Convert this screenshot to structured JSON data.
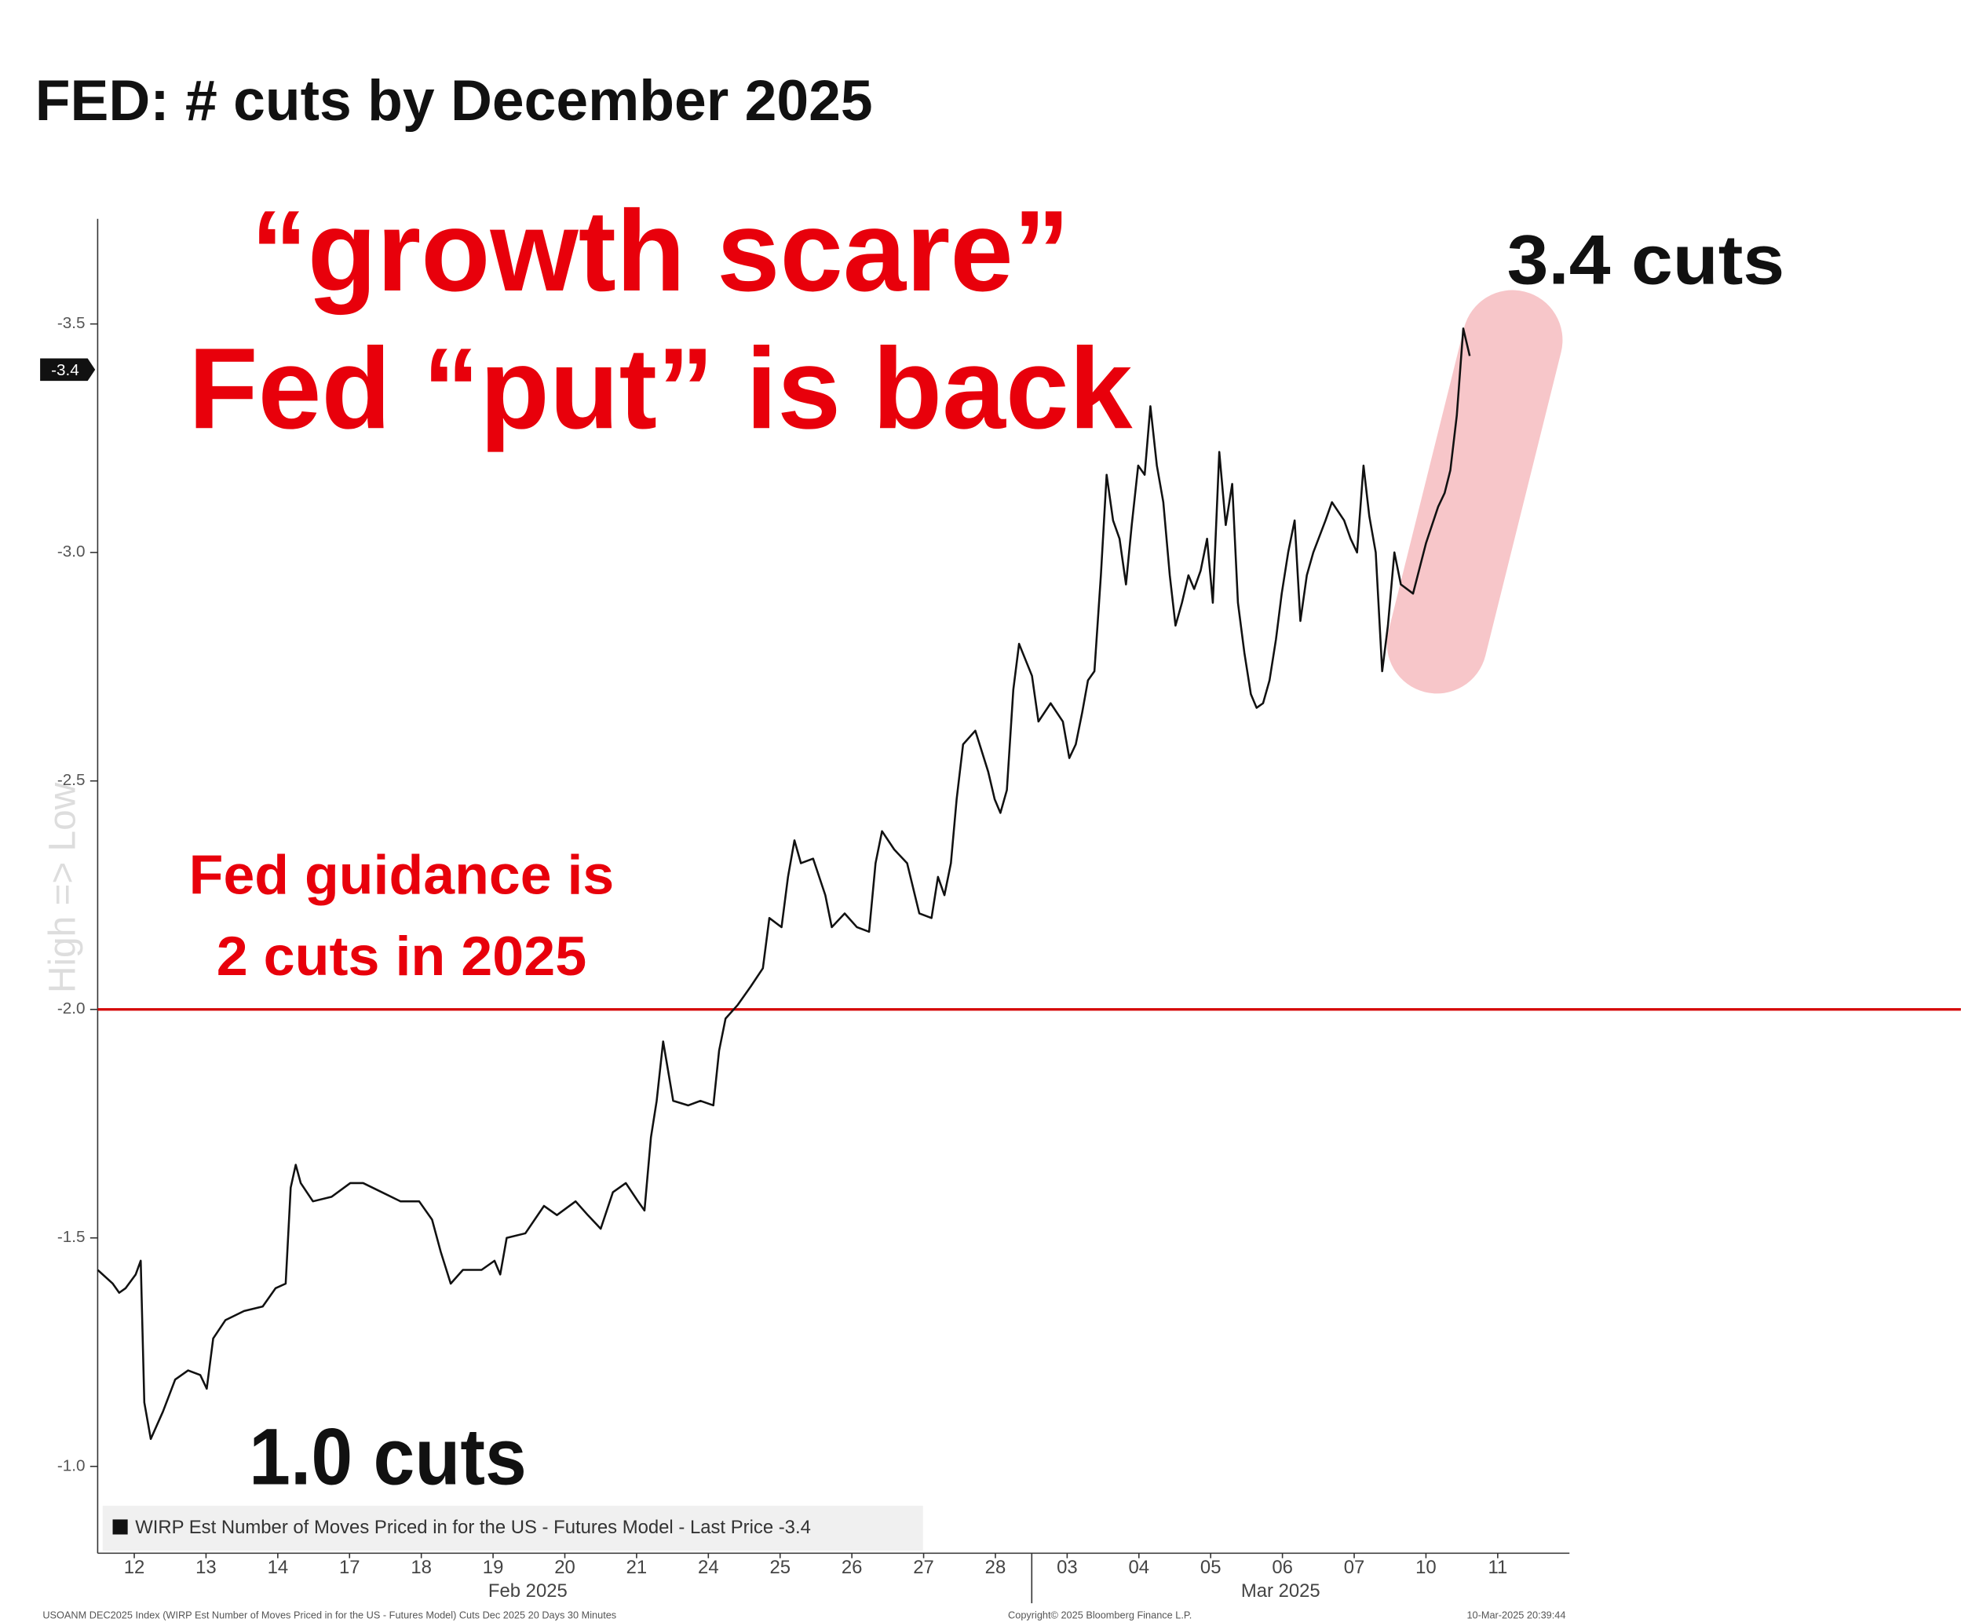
{
  "chart_data": {
    "type": "line",
    "title": "FED: # cuts by December 2025",
    "y_label": "High => Low",
    "annotations": [
      "“growth scare”",
      "Fed “put” is back",
      "3.4 cuts",
      "1.0 cuts",
      "Fed guidance is",
      "2 cuts in 2025"
    ],
    "month_labels": [
      "Feb 2025",
      "Mar 2025"
    ],
    "footer": [
      "USOANM DEC2025 Index (WIRP Est Number of Moves Priced in for the US - Futures Model) Cuts Dec 2025 20 Days 30 Minutes",
      "Copyright© 2025 Bloomberg Finance L.P.",
      "10-Mar-2025 20:39:44"
    ],
    "last_price": -3.4,
    "reference_line": -2.0,
    "reference_color": "#d40000",
    "xlim": [
      -0.51,
      20
    ],
    "xticks": [
      {
        "value": 0,
        "label": "12"
      },
      {
        "value": 1,
        "label": "13"
      },
      {
        "value": 2,
        "label": "14"
      },
      {
        "value": 3,
        "label": "17"
      },
      {
        "value": 4,
        "label": "18"
      },
      {
        "value": 5,
        "label": "19"
      },
      {
        "value": 6,
        "label": "20"
      },
      {
        "value": 7,
        "label": "21"
      },
      {
        "value": 8,
        "label": "24"
      },
      {
        "value": 9,
        "label": "25"
      },
      {
        "value": 10,
        "label": "26"
      },
      {
        "value": 11,
        "label": "27"
      },
      {
        "value": 12,
        "label": "28"
      },
      {
        "value": 13,
        "label": "03"
      },
      {
        "value": 14,
        "label": "04"
      },
      {
        "value": 15,
        "label": "05"
      },
      {
        "value": 16,
        "label": "06"
      },
      {
        "value": 17,
        "label": "07"
      },
      {
        "value": 18,
        "label": "10"
      },
      {
        "value": 19,
        "label": "11"
      }
    ],
    "ylim": [
      -0.81,
      -3.73
    ],
    "yticks": [
      -3.5,
      {
        "value": -3,
        "label": "-3.0"
      },
      -2.5,
      {
        "value": -2,
        "label": "-2.0"
      },
      -1.5,
      {
        "value": -1,
        "label": "-1.0"
      }
    ],
    "grid": false,
    "x": [
      -0.51,
      -0.3,
      -0.21,
      -0.12,
      0.02,
      0.09,
      0.14,
      0.23,
      0.4,
      0.57,
      0.75,
      0.92,
      1.01,
      1.1,
      1.27,
      1.53,
      1.79,
      1.97,
      2.11,
      2.18,
      2.25,
      2.32,
      2.49,
      2.75,
      3.01,
      3.19,
      3.45,
      3.71,
      3.97,
      4.15,
      4.27,
      4.41,
      4.58,
      4.84,
      5.02,
      5.1,
      5.19,
      5.45,
      5.71,
      5.89,
      6.15,
      6.32,
      6.5,
      6.67,
      6.85,
      7.02,
      7.11,
      7.2,
      7.28,
      7.37,
      7.51,
      7.72,
      7.89,
      8.07,
      8.15,
      8.24,
      8.41,
      8.59,
      8.76,
      8.85,
      9.02,
      9.11,
      9.2,
      9.29,
      9.46,
      9.63,
      9.72,
      9.9,
      10.07,
      10.24,
      10.33,
      10.42,
      10.59,
      10.77,
      10.94,
      11.11,
      11.2,
      11.29,
      11.38,
      11.46,
      11.55,
      11.72,
      11.9,
      11.99,
      12.07,
      12.16,
      12.25,
      12.33,
      12.51,
      12.6,
      12.77,
      12.94,
      13.03,
      13.12,
      13.21,
      13.29,
      13.38,
      13.47,
      13.55,
      13.64,
      13.73,
      13.82,
      13.9,
      13.99,
      14.08,
      14.16,
      14.25,
      14.34,
      14.43,
      14.51,
      14.6,
      14.69,
      14.77,
      14.86,
      14.95,
      15.03,
      15.12,
      15.21,
      15.3,
      15.38,
      15.47,
      15.56,
      15.64,
      15.73,
      15.82,
      15.91,
      15.99,
      16.08,
      16.17,
      16.25,
      16.34,
      16.43,
      16.6,
      16.69,
      16.86,
      16.95,
      17.04,
      17.13,
      17.21,
      17.3,
      17.39,
      17.47,
      17.56,
      17.65,
      17.82,
      18.0,
      18.17,
      18.26,
      18.34,
      18.43,
      18.52,
      18.61
    ],
    "series": [
      {
        "name": "WIRP Est Number of Moves Priced in for the US - Futures Model - Last Price -3.4",
        "color": "#111111",
        "values": [
          -1.43,
          -1.4,
          -1.38,
          -1.39,
          -1.42,
          -1.45,
          -1.14,
          -1.06,
          -1.12,
          -1.19,
          -1.21,
          -1.2,
          -1.17,
          -1.28,
          -1.32,
          -1.34,
          -1.35,
          -1.39,
          -1.4,
          -1.61,
          -1.66,
          -1.62,
          -1.58,
          -1.59,
          -1.62,
          -1.62,
          -1.6,
          -1.58,
          -1.58,
          -1.54,
          -1.47,
          -1.4,
          -1.43,
          -1.43,
          -1.45,
          -1.42,
          -1.5,
          -1.51,
          -1.57,
          -1.55,
          -1.58,
          -1.55,
          -1.52,
          -1.6,
          -1.62,
          -1.58,
          -1.56,
          -1.72,
          -1.8,
          -1.93,
          -1.8,
          -1.79,
          -1.8,
          -1.79,
          -1.91,
          -1.98,
          -2.01,
          -2.05,
          -2.09,
          -2.2,
          -2.18,
          -2.29,
          -2.37,
          -2.32,
          -2.33,
          -2.25,
          -2.18,
          -2.21,
          -2.18,
          -2.17,
          -2.32,
          -2.39,
          -2.35,
          -2.32,
          -2.21,
          -2.2,
          -2.29,
          -2.25,
          -2.32,
          -2.46,
          -2.58,
          -2.61,
          -2.52,
          -2.46,
          -2.43,
          -2.48,
          -2.7,
          -2.8,
          -2.73,
          -2.63,
          -2.67,
          -2.63,
          -2.55,
          -2.58,
          -2.65,
          -2.72,
          -2.74,
          -2.95,
          -3.17,
          -3.07,
          -3.03,
          -2.93,
          -3.06,
          -3.19,
          -3.17,
          -3.32,
          -3.19,
          -3.11,
          -2.95,
          -2.84,
          -2.89,
          -2.95,
          -2.92,
          -2.96,
          -3.03,
          -2.89,
          -3.22,
          -3.06,
          -3.15,
          -2.89,
          -2.78,
          -2.69,
          -2.66,
          -2.67,
          -2.72,
          -2.81,
          -2.91,
          -3.0,
          -3.07,
          -2.85,
          -2.95,
          -3.0,
          -3.07,
          -3.11,
          -3.07,
          -3.03,
          -3.0,
          -3.19,
          -3.08,
          -3.0,
          -2.74,
          -2.84,
          -3.0,
          -2.93,
          -2.91,
          -3.02,
          -3.1,
          -3.13,
          -3.18,
          -3.3,
          -3.49,
          -3.43
        ]
      }
    ]
  }
}
